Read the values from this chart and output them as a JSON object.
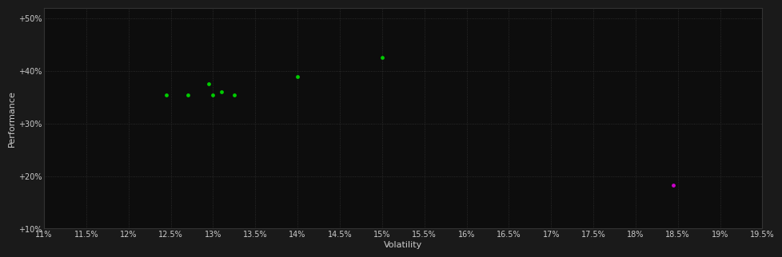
{
  "background_color": "#1a1a1a",
  "plot_bg_color": "#0d0d0d",
  "grid_color": "#333333",
  "text_color": "#cccccc",
  "xlabel": "Volatility",
  "ylabel": "Performance",
  "xlim": [
    0.11,
    0.195
  ],
  "ylim": [
    0.1,
    0.52
  ],
  "xticks": [
    0.11,
    0.115,
    0.12,
    0.125,
    0.13,
    0.135,
    0.14,
    0.145,
    0.15,
    0.155,
    0.16,
    0.165,
    0.17,
    0.175,
    0.18,
    0.185,
    0.19,
    0.195
  ],
  "yticks": [
    0.1,
    0.2,
    0.3,
    0.4,
    0.5
  ],
  "ytick_labels": [
    "+10%",
    "+20%",
    "+30%",
    "+40%",
    "+50%"
  ],
  "xtick_labels": [
    "11%",
    "11.5%",
    "12%",
    "12.5%",
    "13%",
    "13.5%",
    "14%",
    "14.5%",
    "15%",
    "15.5%",
    "16%",
    "16.5%",
    "17%",
    "17.5%",
    "18%",
    "18.5%",
    "19%",
    "19.5%"
  ],
  "green_points": [
    [
      0.1245,
      0.355
    ],
    [
      0.127,
      0.355
    ],
    [
      0.1295,
      0.375
    ],
    [
      0.13,
      0.355
    ],
    [
      0.131,
      0.36
    ],
    [
      0.1325,
      0.355
    ],
    [
      0.14,
      0.39
    ],
    [
      0.15,
      0.425
    ]
  ],
  "magenta_points": [
    [
      0.1845,
      0.182
    ]
  ],
  "green_color": "#00cc00",
  "magenta_color": "#cc00cc",
  "marker_size": 12,
  "font_size_ticks": 7,
  "font_size_labels": 8
}
